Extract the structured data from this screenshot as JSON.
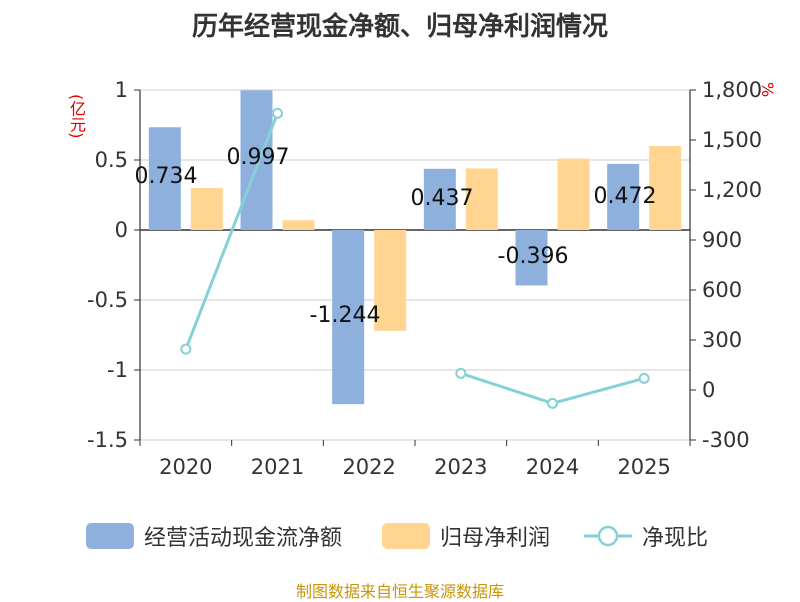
{
  "chart_data": {
    "type": "bar",
    "title": "历年经营现金净额、归母净利润情况",
    "categories": [
      "2020",
      "2021",
      "2022",
      "2023",
      "2024",
      "2025"
    ],
    "series": [
      {
        "name": "经营活动现金流净额",
        "axis": "left",
        "type": "bar",
        "color": "#8eb0dc",
        "values": [
          0.734,
          0.997,
          -1.244,
          0.437,
          -0.396,
          0.472
        ]
      },
      {
        "name": "归母净利润",
        "axis": "left",
        "type": "bar",
        "color": "#ffd591",
        "values": [
          0.3,
          0.07,
          -0.72,
          0.44,
          0.51,
          0.6
        ]
      },
      {
        "name": "净现比",
        "axis": "right",
        "type": "line",
        "color": "#86d0d8",
        "values": [
          245,
          1660,
          null,
          100,
          -80,
          70
        ]
      }
    ],
    "data_labels": [
      "0.734",
      "0.997",
      "-1.244",
      "0.437",
      "-0.396",
      "0.472"
    ],
    "y_left": {
      "unit": "(亿元)",
      "ticks": [
        "1",
        "0.5",
        "0",
        "-0.5",
        "-1",
        "-1.5"
      ],
      "range": [
        -1.5,
        1
      ]
    },
    "y_right": {
      "unit": "%",
      "ticks": [
        "1,800",
        "1,500",
        "1,200",
        "900",
        "600",
        "300",
        "0",
        "-300"
      ],
      "range": [
        -300,
        1800
      ]
    }
  },
  "legend": {
    "items": [
      {
        "label": "经营活动现金流净额",
        "color": "#8eb0dc"
      },
      {
        "label": "归母净利润",
        "color": "#ffd591"
      },
      {
        "label": "净现比",
        "color": "#86d0d8"
      }
    ]
  },
  "source": "制图数据来自恒生聚源数据库"
}
